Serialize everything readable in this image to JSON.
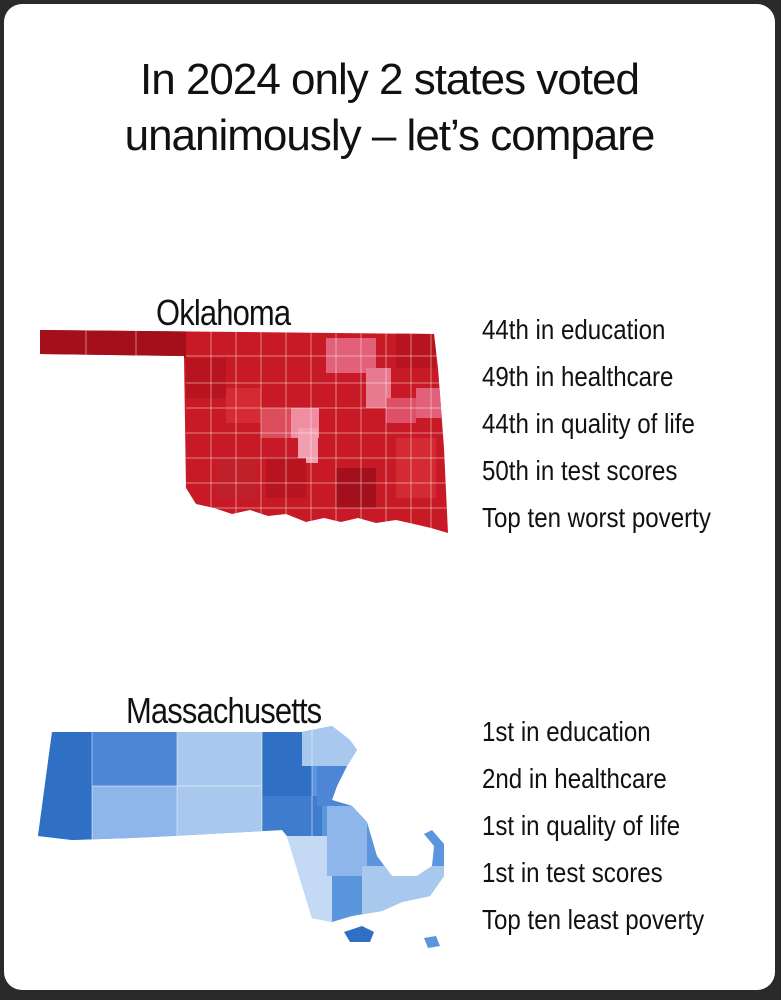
{
  "headline": {
    "line1": "In 2024 only 2 states voted",
    "line2": "unanimously – let’s compare"
  },
  "oklahoma": {
    "name": "Oklahoma",
    "stats": [
      "44th in education",
      "49th in healthcare",
      "44th in quality of life",
      "50th in test scores",
      "Top ten worst poverty"
    ],
    "colors": {
      "dark": "#a3101c",
      "mid": "#d0222c",
      "light": "#e8758a"
    }
  },
  "massachusetts": {
    "name": "Massachusetts",
    "stats": [
      "1st in education",
      "2nd in healthcare",
      "1st in quality of life",
      "1st in test scores",
      "Top ten least poverty"
    ],
    "colors": {
      "dark": "#2f6fc4",
      "mid": "#5b95dc",
      "light": "#a9c8ee"
    }
  }
}
